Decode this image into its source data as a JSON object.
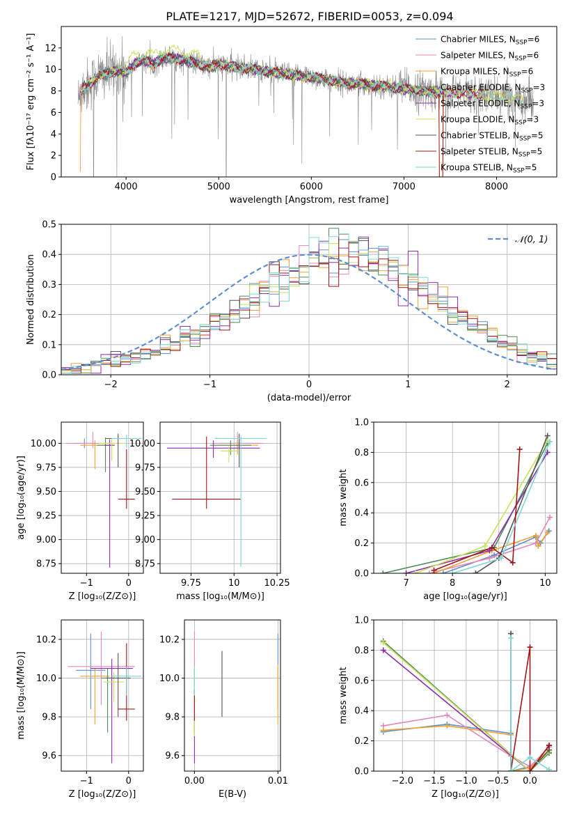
{
  "title": "PLATE=1217, MJD=52672, FIBERID=0053, z=0.094",
  "colors": {
    "series": [
      "#5b8fd1",
      "#e586be",
      "#f0a22e",
      "#4e8c55",
      "#8e2ba8",
      "#cce05a",
      "#555555",
      "#a31515",
      "#7fd6d8"
    ],
    "gaussian": "#5b8fd1",
    "grid": "#b0b0b0",
    "spectrum": "#888888"
  },
  "legend_entries": [
    {
      "label": "Chabrier MILES, N",
      "sub": "SSP",
      "suffix": "=6"
    },
    {
      "label": "Salpeter MILES, N",
      "sub": "SSP",
      "suffix": "=6"
    },
    {
      "label": "Kroupa MILES, N",
      "sub": "SSP",
      "suffix": "=6"
    },
    {
      "label": "Chabrier ELODIE, N",
      "sub": "SSP",
      "suffix": "=3"
    },
    {
      "label": "Salpeter ELODIE, N",
      "sub": "SSP",
      "suffix": "=3"
    },
    {
      "label": "Kroupa ELODIE, N",
      "sub": "SSP",
      "suffix": "=3"
    },
    {
      "label": "Chabrier STELIB, N",
      "sub": "SSP",
      "suffix": "=5"
    },
    {
      "label": "Salpeter STELIB, N",
      "sub": "SSP",
      "suffix": "=5"
    },
    {
      "label": "Kroupa STELIB, N",
      "sub": "SSP",
      "suffix": "=5"
    }
  ],
  "chart_data": [
    {
      "id": "spectrum",
      "type": "line",
      "xlabel": "wavelength [Angstrom, rest frame]",
      "ylabel": "Flux [fλ10⁻¹⁷ erg cm⁻² s⁻¹ A⁻¹]",
      "xlim": [
        3300,
        8650
      ],
      "ylim": [
        0,
        14
      ],
      "xticks": [
        4000,
        5000,
        6000,
        7000,
        8000
      ],
      "yticks": [
        0,
        2,
        4,
        6,
        8,
        10,
        12
      ],
      "legend_position": "upper right",
      "grid": false,
      "model_trend": [
        [
          3500,
          8.0
        ],
        [
          3600,
          8.6
        ],
        [
          3700,
          9.4
        ],
        [
          3800,
          9.6
        ],
        [
          3900,
          9.9
        ],
        [
          4000,
          9.7
        ],
        [
          4100,
          10.6
        ],
        [
          4200,
          10.8
        ],
        [
          4300,
          10.5
        ],
        [
          4400,
          11.0
        ],
        [
          4500,
          11.1
        ],
        [
          4700,
          10.7
        ],
        [
          4900,
          10.2
        ],
        [
          5000,
          10.5
        ],
        [
          5200,
          10.2
        ],
        [
          5400,
          10.0
        ],
        [
          5600,
          9.7
        ],
        [
          5800,
          9.5
        ],
        [
          6000,
          9.3
        ],
        [
          6200,
          9.0
        ],
        [
          6400,
          8.7
        ],
        [
          6600,
          8.6
        ],
        [
          6800,
          8.4
        ],
        [
          7000,
          8.2
        ],
        [
          7200,
          8.0
        ],
        [
          7400,
          7.9
        ],
        [
          7600,
          7.8
        ],
        [
          7800,
          7.7
        ],
        [
          8000,
          7.5
        ],
        [
          8200,
          7.3
        ],
        [
          8400,
          7.2
        ]
      ]
    },
    {
      "id": "residual-distribution",
      "type": "histogram",
      "xlabel": "(data-model)/error",
      "ylabel": "Normed distribution",
      "xlim": [
        -2.5,
        2.5
      ],
      "ylim": [
        0,
        0.5
      ],
      "xticks": [
        -2,
        -1,
        0,
        1,
        2
      ],
      "yticks": [
        0.0,
        0.1,
        0.2,
        0.3,
        0.4,
        0.5
      ],
      "legend_position": "upper right",
      "grid": true,
      "gaussian": {
        "mu": 0,
        "sigma": 1,
        "label": "𝒩(0, 1)"
      },
      "bin_width": 0.1,
      "bin_start": -2.5,
      "reference_values": [
        0.02,
        0.02,
        0.03,
        0.03,
        0.04,
        0.05,
        0.05,
        0.06,
        0.07,
        0.08,
        0.09,
        0.1,
        0.12,
        0.13,
        0.15,
        0.17,
        0.19,
        0.21,
        0.23,
        0.25,
        0.27,
        0.3,
        0.32,
        0.34,
        0.36,
        0.38,
        0.39,
        0.4,
        0.41,
        0.4,
        0.39,
        0.38,
        0.36,
        0.34,
        0.32,
        0.3,
        0.27,
        0.25,
        0.23,
        0.21,
        0.19,
        0.17,
        0.15,
        0.13,
        0.11,
        0.09,
        0.08,
        0.06,
        0.05,
        0.04
      ]
    },
    {
      "id": "age-vs-Z",
      "type": "errorbar",
      "xlabel": "Z [log₁₀(Z/Z⊙)]",
      "ylabel": "age  [log₁₀(age/yr)]",
      "xlim": [
        -1.6,
        0.35
      ],
      "ylim": [
        8.65,
        10.22
      ],
      "xticks": [
        -1,
        0
      ],
      "yticks": [
        8.75,
        9.0,
        9.25,
        9.5,
        9.75,
        10.0
      ],
      "grid": true,
      "points": [
        {
          "x": -1.05,
          "y": 10.0,
          "xerr": 0.25,
          "yerr": [
            0.05,
            0.05
          ]
        },
        {
          "x": -0.85,
          "y": 10.0,
          "xerr": 0.65,
          "yerr": [
            0.05,
            0.12
          ]
        },
        {
          "x": -0.8,
          "y": 9.98,
          "xerr": 0.35,
          "yerr": [
            0.25,
            0.05
          ]
        },
        {
          "x": -0.55,
          "y": 9.98,
          "xerr": 0.2,
          "yerr": [
            0.28,
            0.08
          ]
        },
        {
          "x": -0.45,
          "y": 9.98,
          "xerr": 0.12,
          "yerr": [
            1.27,
            0.06
          ]
        },
        {
          "x": -0.4,
          "y": 10.0,
          "xerr": 0.3,
          "yerr": [
            0.18,
            0.04
          ]
        },
        {
          "x": -0.25,
          "y": 10.05,
          "xerr": 0.3,
          "yerr": [
            0.3,
            0.05
          ]
        },
        {
          "x": -0.05,
          "y": 9.42,
          "xerr": 0.2,
          "yerr": [
            0.1,
            0.52
          ]
        },
        {
          "x": -0.05,
          "y": 10.05,
          "xerr": 0.35,
          "yerr": [
            0.1,
            0.04
          ]
        }
      ]
    },
    {
      "id": "age-vs-mass",
      "type": "errorbar",
      "xlabel": "mass [log₁₀(M/M⊙)]",
      "ylabel": "",
      "xlim": [
        9.57,
        10.27
      ],
      "ylim": [
        8.65,
        10.22
      ],
      "xticks": [
        9.75,
        10.0,
        10.25
      ],
      "yticks": [
        8.75,
        9.0,
        9.25,
        9.5,
        9.75,
        10.0
      ],
      "grid": true,
      "points": [
        {
          "x": 10.03,
          "y": 10.0,
          "xerr": 0.12,
          "yerr": [
            0.05,
            0.05
          ]
        },
        {
          "x": 10.02,
          "y": 10.0,
          "xerr": 0.15,
          "yerr": [
            0.05,
            0.12
          ]
        },
        {
          "x": 10.02,
          "y": 9.98,
          "xerr": 0.12,
          "yerr": [
            0.1,
            0.05
          ]
        },
        {
          "x": 9.98,
          "y": 9.98,
          "xerr": 0.12,
          "yerr": [
            0.1,
            0.05
          ]
        },
        {
          "x": 9.88,
          "y": 9.95,
          "xerr": 0.27,
          "yerr": [
            0.1,
            0.08
          ]
        },
        {
          "x": 9.97,
          "y": 9.92,
          "xerr": 0.05,
          "yerr": [
            0.12,
            0.05
          ]
        },
        {
          "x": 10.03,
          "y": 10.05,
          "xerr": 0.08,
          "yerr": [
            0.3,
            0.05
          ]
        },
        {
          "x": 9.84,
          "y": 9.42,
          "xerr": 0.2,
          "yerr": [
            0.1,
            0.65
          ]
        },
        {
          "x": 10.04,
          "y": 10.05,
          "xerr": 0.15,
          "yerr": [
            1.33,
            0.03
          ]
        }
      ]
    },
    {
      "id": "mass-weight-vs-age",
      "type": "line",
      "xlabel": "age  [log₁₀(age/yr)]",
      "ylabel": "mass weight",
      "xlim": [
        6.3,
        10.25
      ],
      "ylim": [
        0.0,
        1.0
      ],
      "xticks": [
        7,
        8,
        9,
        10
      ],
      "yticks": [
        0.0,
        0.2,
        0.4,
        0.6,
        0.8,
        1.0
      ],
      "grid": true,
      "series": [
        {
          "points": [
            [
              7.8,
              0.0
            ],
            [
              8.9,
              0.12
            ],
            [
              9.8,
              0.24
            ],
            [
              9.9,
              0.2
            ],
            [
              10.08,
              0.28
            ]
          ]
        },
        {
          "points": [
            [
              7.5,
              0.0
            ],
            [
              8.8,
              0.1
            ],
            [
              9.8,
              0.2
            ],
            [
              10.1,
              0.37
            ]
          ]
        },
        {
          "points": [
            [
              7.6,
              0.0
            ],
            [
              8.85,
              0.15
            ],
            [
              9.8,
              0.25
            ],
            [
              9.85,
              0.18
            ],
            [
              10.05,
              0.27
            ]
          ]
        },
        {
          "points": [
            [
              6.5,
              0.0
            ],
            [
              8.9,
              0.17
            ],
            [
              10.05,
              0.86
            ]
          ]
        },
        {
          "points": [
            [
              7.0,
              0.0
            ],
            [
              8.8,
              0.15
            ],
            [
              10.05,
              0.8
            ]
          ]
        },
        {
          "points": [
            [
              7.2,
              0.0
            ],
            [
              8.7,
              0.18
            ],
            [
              10.05,
              0.88
            ]
          ]
        },
        {
          "points": [
            [
              8.5,
              0.0
            ],
            [
              9.0,
              0.1
            ],
            [
              10.05,
              0.91
            ]
          ]
        },
        {
          "points": [
            [
              7.6,
              0.02
            ],
            [
              8.85,
              0.17
            ],
            [
              9.3,
              0.07
            ],
            [
              9.45,
              0.82
            ]
          ]
        },
        {
          "points": [
            [
              8.0,
              0.0
            ],
            [
              9.05,
              0.1
            ],
            [
              10.1,
              0.87
            ]
          ]
        }
      ]
    },
    {
      "id": "mass-vs-Z",
      "type": "errorbar",
      "xlabel": "Z [log₁₀(Z/Z⊙)]",
      "ylabel": "mass [log₁₀(M/M⊙)]",
      "xlim": [
        -1.6,
        0.35
      ],
      "ylim": [
        9.52,
        10.3
      ],
      "xticks": [
        -1,
        0
      ],
      "yticks": [
        9.6,
        9.8,
        10.0,
        10.2
      ],
      "grid": true,
      "points": [
        {
          "x": -0.9,
          "y": 10.04,
          "xerr": 0.35,
          "yerr": [
            0.2,
            0.19
          ]
        },
        {
          "x": -0.65,
          "y": 10.06,
          "xerr": 0.8,
          "yerr": [
            0.2,
            0.18
          ]
        },
        {
          "x": -0.8,
          "y": 10.01,
          "xerr": 0.35,
          "yerr": [
            0.25,
            0.04
          ]
        },
        {
          "x": -0.5,
          "y": 10.0,
          "xerr": 0.15,
          "yerr": [
            0.28,
            0.05
          ]
        },
        {
          "x": -0.4,
          "y": 10.05,
          "xerr": 0.5,
          "yerr": [
            0.49,
            0.05
          ]
        },
        {
          "x": -0.35,
          "y": 9.98,
          "xerr": 0.25,
          "yerr": [
            0.1,
            0.05
          ]
        },
        {
          "x": -0.25,
          "y": 10.0,
          "xerr": 0.3,
          "yerr": [
            0.2,
            0.13
          ]
        },
        {
          "x": -0.05,
          "y": 9.84,
          "xerr": 0.2,
          "yerr": [
            0.06,
            0.34
          ]
        },
        {
          "x": -0.05,
          "y": 10.01,
          "xerr": 0.35,
          "yerr": [
            0.1,
            0.05
          ]
        }
      ]
    },
    {
      "id": "mass-vs-EBV",
      "type": "errorbar",
      "xlabel": "E(B-V)",
      "ylabel": "",
      "xlim": [
        -0.0012,
        0.0103
      ],
      "ylim": [
        9.52,
        10.3
      ],
      "xticks": [
        0.0,
        0.01
      ],
      "xtick_labels": [
        "0.00",
        "0.01"
      ],
      "yticks": [
        9.6,
        9.8,
        10.0,
        10.2
      ],
      "grid": true,
      "points": [
        {
          "x": 0.01,
          "y": 10.04,
          "xerr": 0,
          "yerr": [
            0.2,
            0.19
          ]
        },
        {
          "x": 0.0,
          "y": 10.06,
          "xerr": 0,
          "yerr": [
            0.2,
            0.18
          ]
        },
        {
          "x": 0.01,
          "y": 10.01,
          "xerr": 0,
          "yerr": [
            0.25,
            0.06
          ]
        },
        {
          "x": 0.0,
          "y": 10.0,
          "xerr": 0,
          "yerr": [
            0.28,
            0.05
          ]
        },
        {
          "x": 0.0,
          "y": 9.7,
          "xerr": 0,
          "yerr": [
            0.14,
            0.1
          ]
        },
        {
          "x": 0.0,
          "y": 9.98,
          "xerr": 0,
          "yerr": [
            0.28,
            0.05
          ]
        },
        {
          "x": 0.0033,
          "y": 9.97,
          "xerr": 0,
          "yerr": [
            0.17,
            0.17
          ]
        },
        {
          "x": 0.0,
          "y": 9.84,
          "xerr": 0,
          "yerr": [
            0.06,
            0.1
          ]
        },
        {
          "x": 0.0,
          "y": 10.01,
          "xerr": 0,
          "yerr": [
            0.1,
            0.05
          ]
        }
      ]
    },
    {
      "id": "mass-weight-vs-Z",
      "type": "line",
      "xlabel": "Z [log₁₀(Z/Z⊙)]",
      "ylabel": "mass weight",
      "xlim": [
        -2.45,
        0.42
      ],
      "ylim": [
        0.0,
        1.0
      ],
      "xticks": [
        -2.0,
        -1.5,
        -1.0,
        -0.5,
        0.0
      ],
      "xtick_labels": [
        "−2.0",
        "−1.5",
        "−1.0",
        "−0.5",
        "0.0"
      ],
      "yticks": [
        0.0,
        0.2,
        0.4,
        0.6,
        0.8,
        1.0
      ],
      "grid": true,
      "series": [
        {
          "points": [
            [
              -2.3,
              0.26
            ],
            [
              -1.3,
              0.31
            ],
            [
              -0.3,
              0.25
            ],
            [
              -0.3,
              0.0
            ],
            [
              0.0,
              0.03
            ],
            [
              0.3,
              0.12
            ]
          ]
        },
        {
          "points": [
            [
              -2.3,
              0.3
            ],
            [
              -1.3,
              0.37
            ],
            [
              -0.3,
              0.1
            ],
            [
              0.0,
              0.03
            ],
            [
              0.3,
              0.16
            ]
          ]
        },
        {
          "points": [
            [
              -2.3,
              0.27
            ],
            [
              -1.3,
              0.3
            ],
            [
              -0.3,
              0.24
            ],
            [
              -0.3,
              0.0
            ],
            [
              0.0,
              0.02
            ],
            [
              0.3,
              0.14
            ]
          ]
        },
        {
          "points": [
            [
              -2.3,
              0.86
            ],
            [
              0.0,
              0.0
            ],
            [
              0.3,
              0.12
            ]
          ]
        },
        {
          "points": [
            [
              -2.3,
              0.8
            ],
            [
              0.0,
              0.0
            ],
            [
              0.3,
              0.17
            ]
          ]
        },
        {
          "points": [
            [
              -2.3,
              0.85
            ],
            [
              0.0,
              0.0
            ],
            [
              0.3,
              0.13
            ]
          ]
        },
        {
          "points": [
            [
              -0.3,
              0.91
            ],
            [
              -0.3,
              0.0
            ],
            [
              0.0,
              0.0
            ],
            [
              0.3,
              0.14
            ]
          ]
        },
        {
          "points": [
            [
              -0.3,
              0.0
            ],
            [
              0.0,
              0.82
            ],
            [
              0.0,
              0.0
            ],
            [
              0.3,
              0.17
            ]
          ]
        },
        {
          "points": [
            [
              -0.3,
              0.88
            ],
            [
              -0.3,
              0.0
            ],
            [
              0.0,
              0.09
            ],
            [
              0.3,
              0.01
            ]
          ]
        }
      ]
    }
  ]
}
